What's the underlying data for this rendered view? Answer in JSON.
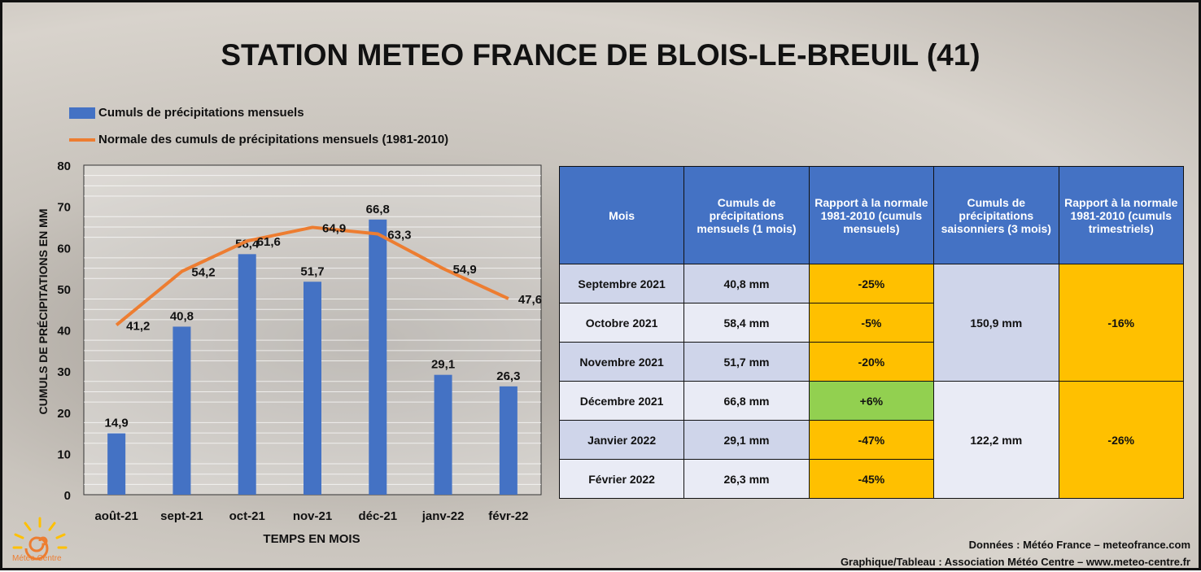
{
  "title": "STATION METEO FRANCE DE BLOIS-LE-BREUIL (41)",
  "legend": {
    "bars": "Cumuls de précipitations mensuels",
    "line": "Normale des cumuls de précipitations mensuels (1981-2010)"
  },
  "chart_data": {
    "type": "bar",
    "categories": [
      "août-21",
      "sept-21",
      "oct-21",
      "nov-21",
      "déc-21",
      "janv-22",
      "févr-22"
    ],
    "series": [
      {
        "name": "Cumuls de précipitations mensuels",
        "type": "bar",
        "color": "#4472c4",
        "values": [
          14.9,
          40.8,
          58.4,
          51.7,
          66.8,
          29.1,
          26.3
        ],
        "labels": [
          "14,9",
          "40,8",
          "58,4",
          "51,7",
          "66,8",
          "29,1",
          "26,3"
        ]
      },
      {
        "name": "Normale des cumuls de précipitations mensuels (1981-2010)",
        "type": "line",
        "color": "#ed7d31",
        "values": [
          41.2,
          54.2,
          61.6,
          64.9,
          63.3,
          54.9,
          47.6
        ],
        "labels": [
          "41,2",
          "54,2",
          "61,6",
          "64,9",
          "63,3",
          "54,9",
          "47,6"
        ]
      }
    ],
    "xlabel": "TEMPS EN MOIS",
    "ylabel": "CUMULS DE PRÉCIPITATIONS EN MM",
    "ylim": [
      0,
      80
    ],
    "yticks": [
      "0",
      "10",
      "20",
      "30",
      "40",
      "50",
      "60",
      "70",
      "80"
    ],
    "grid": true,
    "legend_position": "top-left"
  },
  "table": {
    "headers": [
      "Mois",
      "Cumuls de précipitations mensuels (1 mois)",
      "Rapport à la normale 1981-2010 (cumuls mensuels)",
      "Cumuls de précipitations saisonniers (3 mois)",
      "Rapport à la normale 1981-2010 (cumuls trimestriels)"
    ],
    "rows": [
      {
        "mois": "Septembre 2021",
        "cumul": "40,8 mm",
        "rapport": "-25%"
      },
      {
        "mois": "Octobre 2021",
        "cumul": "58,4 mm",
        "rapport": "-5%"
      },
      {
        "mois": "Novembre 2021",
        "cumul": "51,7 mm",
        "rapport": "-20%"
      },
      {
        "mois": "Décembre 2021",
        "cumul": "66,8 mm",
        "rapport": "+6%"
      },
      {
        "mois": "Janvier 2022",
        "cumul": "29,1 mm",
        "rapport": "-47%"
      },
      {
        "mois": "Février 2022",
        "cumul": "26,3 mm",
        "rapport": "-45%"
      }
    ],
    "seasons": [
      {
        "cumul": "150,9 mm",
        "rapport": "-16%"
      },
      {
        "cumul": "122,2 mm",
        "rapport": "-26%"
      }
    ]
  },
  "credits": {
    "line1": "Données : Météo France – meteofrance.com",
    "line2": "Graphique/Tableau : Association Météo Centre – www.meteo-centre.fr"
  },
  "logo_text": "Météo Centre"
}
